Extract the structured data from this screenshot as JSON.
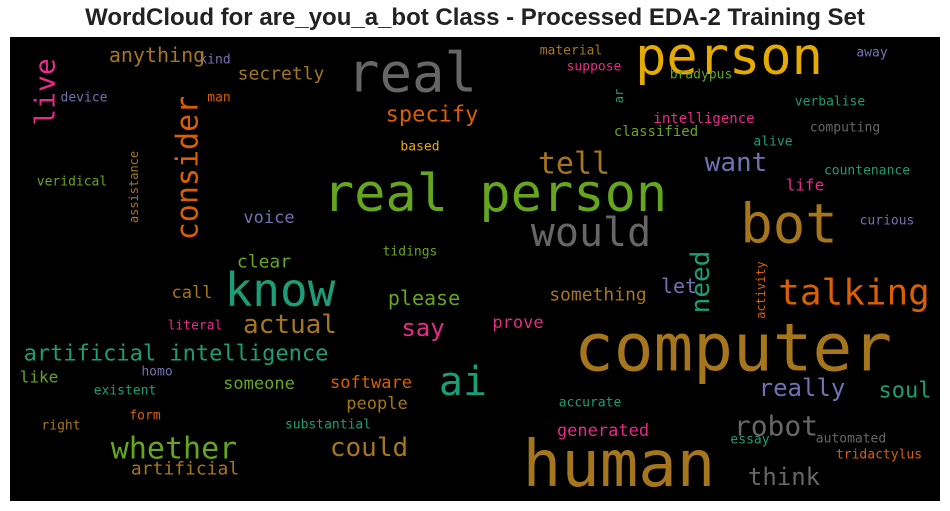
{
  "chart_data": {
    "type": "wordcloud",
    "title": "WordCloud for are_you_a_bot Class - Processed EDA-2 Training Set",
    "background": "#000000",
    "palette": [
      "#1b9e77",
      "#d95f02",
      "#7570b3",
      "#e7298a",
      "#66a61e",
      "#e6ab02",
      "#a6761d",
      "#666666"
    ],
    "words": [
      {
        "text": "real person",
        "weight": 1.0,
        "color": "#66a61e",
        "orientation": "horizontal"
      },
      {
        "text": "computer",
        "weight": 0.98,
        "color": "#a6761d",
        "orientation": "horizontal"
      },
      {
        "text": "human",
        "weight": 0.95,
        "color": "#a6761d",
        "orientation": "horizontal"
      },
      {
        "text": "bot",
        "weight": 0.85,
        "color": "#a6761d",
        "orientation": "horizontal"
      },
      {
        "text": "person",
        "weight": 0.8,
        "color": "#e6ab02",
        "orientation": "horizontal"
      },
      {
        "text": "real",
        "weight": 0.8,
        "color": "#666666",
        "orientation": "horizontal"
      },
      {
        "text": "know",
        "weight": 0.7,
        "color": "#1b9e77",
        "orientation": "horizontal"
      },
      {
        "text": "ai",
        "weight": 0.62,
        "color": "#1b9e77",
        "orientation": "horizontal"
      },
      {
        "text": "would",
        "weight": 0.62,
        "color": "#666666",
        "orientation": "horizontal"
      },
      {
        "text": "talking",
        "weight": 0.55,
        "color": "#d95f02",
        "orientation": "horizontal"
      },
      {
        "text": "whether",
        "weight": 0.5,
        "color": "#66a61e",
        "orientation": "horizontal"
      },
      {
        "text": "consider",
        "weight": 0.45,
        "color": "#d95f02",
        "orientation": "vertical"
      },
      {
        "text": "tell",
        "weight": 0.45,
        "color": "#a6761d",
        "orientation": "horizontal"
      },
      {
        "text": "robot",
        "weight": 0.42,
        "color": "#666666",
        "orientation": "horizontal"
      },
      {
        "text": "live",
        "weight": 0.4,
        "color": "#e7298a",
        "orientation": "vertical"
      },
      {
        "text": "need",
        "weight": 0.4,
        "color": "#1b9e77",
        "orientation": "vertical"
      },
      {
        "text": "artificial intelligence",
        "weight": 0.38,
        "color": "#1b9e77",
        "orientation": "horizontal"
      },
      {
        "text": "could",
        "weight": 0.38,
        "color": "#a6761d",
        "orientation": "horizontal"
      },
      {
        "text": "actual",
        "weight": 0.36,
        "color": "#a6761d",
        "orientation": "horizontal"
      },
      {
        "text": "want",
        "weight": 0.36,
        "color": "#7570b3",
        "orientation": "horizontal"
      },
      {
        "text": "say",
        "weight": 0.34,
        "color": "#e7298a",
        "orientation": "horizontal"
      },
      {
        "text": "really",
        "weight": 0.34,
        "color": "#7570b3",
        "orientation": "horizontal"
      },
      {
        "text": "think",
        "weight": 0.34,
        "color": "#666666",
        "orientation": "horizontal"
      },
      {
        "text": "specify",
        "weight": 0.3,
        "color": "#d95f02",
        "orientation": "horizontal"
      },
      {
        "text": "soul",
        "weight": 0.3,
        "color": "#1b9e77",
        "orientation": "horizontal"
      },
      {
        "text": "anything",
        "weight": 0.28,
        "color": "#a6761d",
        "orientation": "horizontal"
      },
      {
        "text": "please",
        "weight": 0.28,
        "color": "#66a61e",
        "orientation": "horizontal"
      },
      {
        "text": "let",
        "weight": 0.28,
        "color": "#7570b3",
        "orientation": "horizontal"
      },
      {
        "text": "artificial",
        "weight": 0.25,
        "color": "#a6761d",
        "orientation": "horizontal"
      },
      {
        "text": "secretly",
        "weight": 0.25,
        "color": "#a6761d",
        "orientation": "horizontal"
      },
      {
        "text": "clear",
        "weight": 0.25,
        "color": "#66a61e",
        "orientation": "horizontal"
      },
      {
        "text": "something",
        "weight": 0.25,
        "color": "#a6761d",
        "orientation": "horizontal"
      },
      {
        "text": "someone",
        "weight": 0.24,
        "color": "#66a61e",
        "orientation": "horizontal"
      },
      {
        "text": "software",
        "weight": 0.24,
        "color": "#d95f02",
        "orientation": "horizontal"
      },
      {
        "text": "voice",
        "weight": 0.24,
        "color": "#7570b3",
        "orientation": "horizontal"
      },
      {
        "text": "call",
        "weight": 0.24,
        "color": "#a6761d",
        "orientation": "horizontal"
      },
      {
        "text": "prove",
        "weight": 0.24,
        "color": "#e7298a",
        "orientation": "horizontal"
      },
      {
        "text": "people",
        "weight": 0.24,
        "color": "#a6761d",
        "orientation": "horizontal"
      },
      {
        "text": "generated",
        "weight": 0.24,
        "color": "#e7298a",
        "orientation": "horizontal"
      },
      {
        "text": "like",
        "weight": 0.22,
        "color": "#66a61e",
        "orientation": "horizontal"
      },
      {
        "text": "life",
        "weight": 0.2,
        "color": "#e7298a",
        "orientation": "horizontal"
      },
      {
        "text": "intelligence",
        "weight": 0.18,
        "color": "#e7298a",
        "orientation": "horizontal"
      },
      {
        "text": "classified",
        "weight": 0.18,
        "color": "#66a61e",
        "orientation": "horizontal"
      },
      {
        "text": "verbalise",
        "weight": 0.17,
        "color": "#1b9e77",
        "orientation": "horizontal"
      },
      {
        "text": "computing",
        "weight": 0.17,
        "color": "#666666",
        "orientation": "horizontal"
      },
      {
        "text": "countenance",
        "weight": 0.17,
        "color": "#1b9e77",
        "orientation": "horizontal"
      },
      {
        "text": "curious",
        "weight": 0.17,
        "color": "#7570b3",
        "orientation": "horizontal"
      },
      {
        "text": "veridical",
        "weight": 0.17,
        "color": "#66a61e",
        "orientation": "horizontal"
      },
      {
        "text": "device",
        "weight": 0.16,
        "color": "#7570b3",
        "orientation": "horizontal"
      },
      {
        "text": "kind",
        "weight": 0.16,
        "color": "#7570b3",
        "orientation": "horizontal"
      },
      {
        "text": "man",
        "weight": 0.16,
        "color": "#d95f02",
        "orientation": "horizontal"
      },
      {
        "text": "material",
        "weight": 0.16,
        "color": "#a6761d",
        "orientation": "horizontal"
      },
      {
        "text": "suppose",
        "weight": 0.16,
        "color": "#e7298a",
        "orientation": "horizontal"
      },
      {
        "text": "bradypus",
        "weight": 0.16,
        "color": "#66a61e",
        "orientation": "horizontal"
      },
      {
        "text": "away",
        "weight": 0.16,
        "color": "#7570b3",
        "orientation": "horizontal"
      },
      {
        "text": "ar",
        "weight": 0.14,
        "color": "#1b9e77",
        "orientation": "vertical"
      },
      {
        "text": "alive",
        "weight": 0.16,
        "color": "#1b9e77",
        "orientation": "horizontal"
      },
      {
        "text": "based",
        "weight": 0.15,
        "color": "#e6ab02",
        "orientation": "horizontal"
      },
      {
        "text": "assistance",
        "weight": 0.15,
        "color": "#a6761d",
        "orientation": "vertical"
      },
      {
        "text": "tidings",
        "weight": 0.15,
        "color": "#66a61e",
        "orientation": "horizontal"
      },
      {
        "text": "activity",
        "weight": 0.15,
        "color": "#d95f02",
        "orientation": "vertical"
      },
      {
        "text": "literal",
        "weight": 0.15,
        "color": "#e7298a",
        "orientation": "horizontal"
      },
      {
        "text": "homo",
        "weight": 0.15,
        "color": "#7570b3",
        "orientation": "horizontal"
      },
      {
        "text": "existent",
        "weight": 0.15,
        "color": "#1b9e77",
        "orientation": "horizontal"
      },
      {
        "text": "form",
        "weight": 0.15,
        "color": "#d95f02",
        "orientation": "horizontal"
      },
      {
        "text": "right",
        "weight": 0.15,
        "color": "#a6761d",
        "orientation": "horizontal"
      },
      {
        "text": "substantial",
        "weight": 0.15,
        "color": "#1b9e77",
        "orientation": "horizontal"
      },
      {
        "text": "accurate",
        "weight": 0.15,
        "color": "#1b9e77",
        "orientation": "horizontal"
      },
      {
        "text": "essay",
        "weight": 0.15,
        "color": "#1b9e77",
        "orientation": "horizontal"
      },
      {
        "text": "automated",
        "weight": 0.15,
        "color": "#666666",
        "orientation": "horizontal"
      },
      {
        "text": "tridactylus",
        "weight": 0.15,
        "color": "#d95f02",
        "orientation": "horizontal"
      }
    ]
  }
}
